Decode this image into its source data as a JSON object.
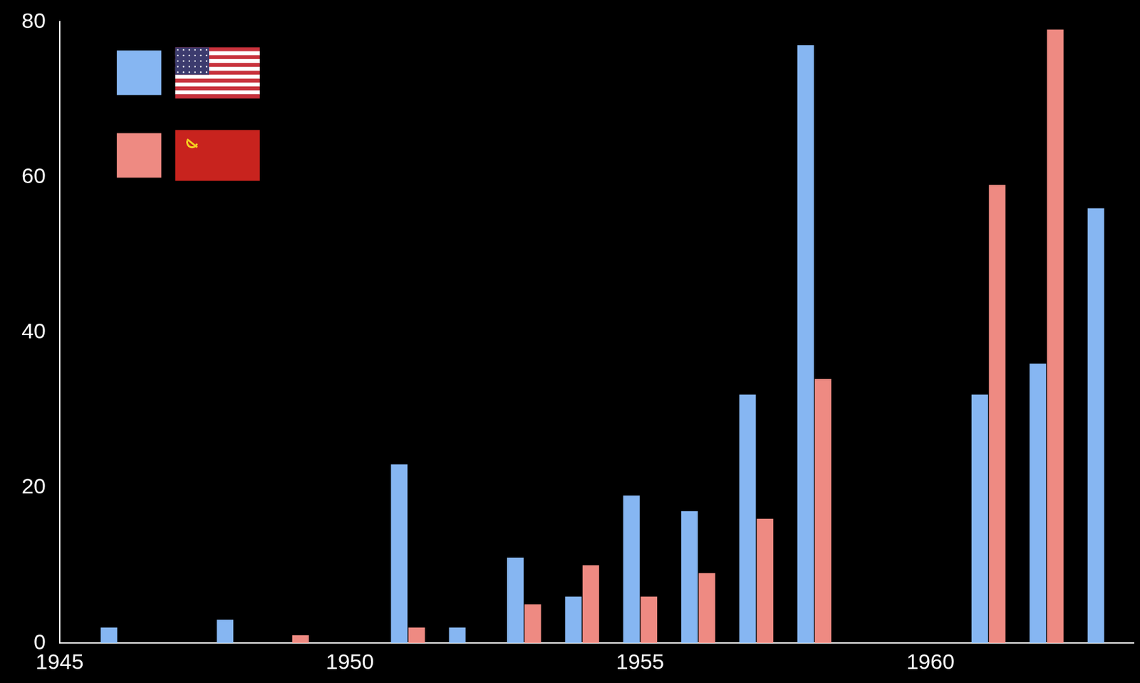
{
  "chart_data": {
    "type": "bar",
    "x": [
      1945,
      1946,
      1947,
      1948,
      1949,
      1950,
      1951,
      1952,
      1953,
      1954,
      1955,
      1956,
      1957,
      1958,
      1959,
      1960,
      1961,
      1962,
      1963
    ],
    "series": [
      {
        "color": "#86b6f2",
        "values": [
          0,
          2,
          0,
          3,
          0,
          0,
          23,
          2,
          11,
          6,
          19,
          17,
          32,
          77,
          0,
          0,
          32,
          36,
          56
        ]
      },
      {
        "color": "#ee8a82",
        "values": [
          0,
          0,
          0,
          0,
          1,
          0,
          2,
          0,
          5,
          10,
          6,
          9,
          16,
          34,
          0,
          0,
          59,
          79,
          0
        ]
      }
    ],
    "xlim": [
      1945,
      1963.5
    ],
    "xticks": [
      1945,
      1950,
      1955,
      1960
    ],
    "ylim": [
      0,
      80
    ],
    "yticks": [
      0,
      20,
      40,
      60,
      80
    ],
    "grid": false,
    "legend": "upper left"
  }
}
